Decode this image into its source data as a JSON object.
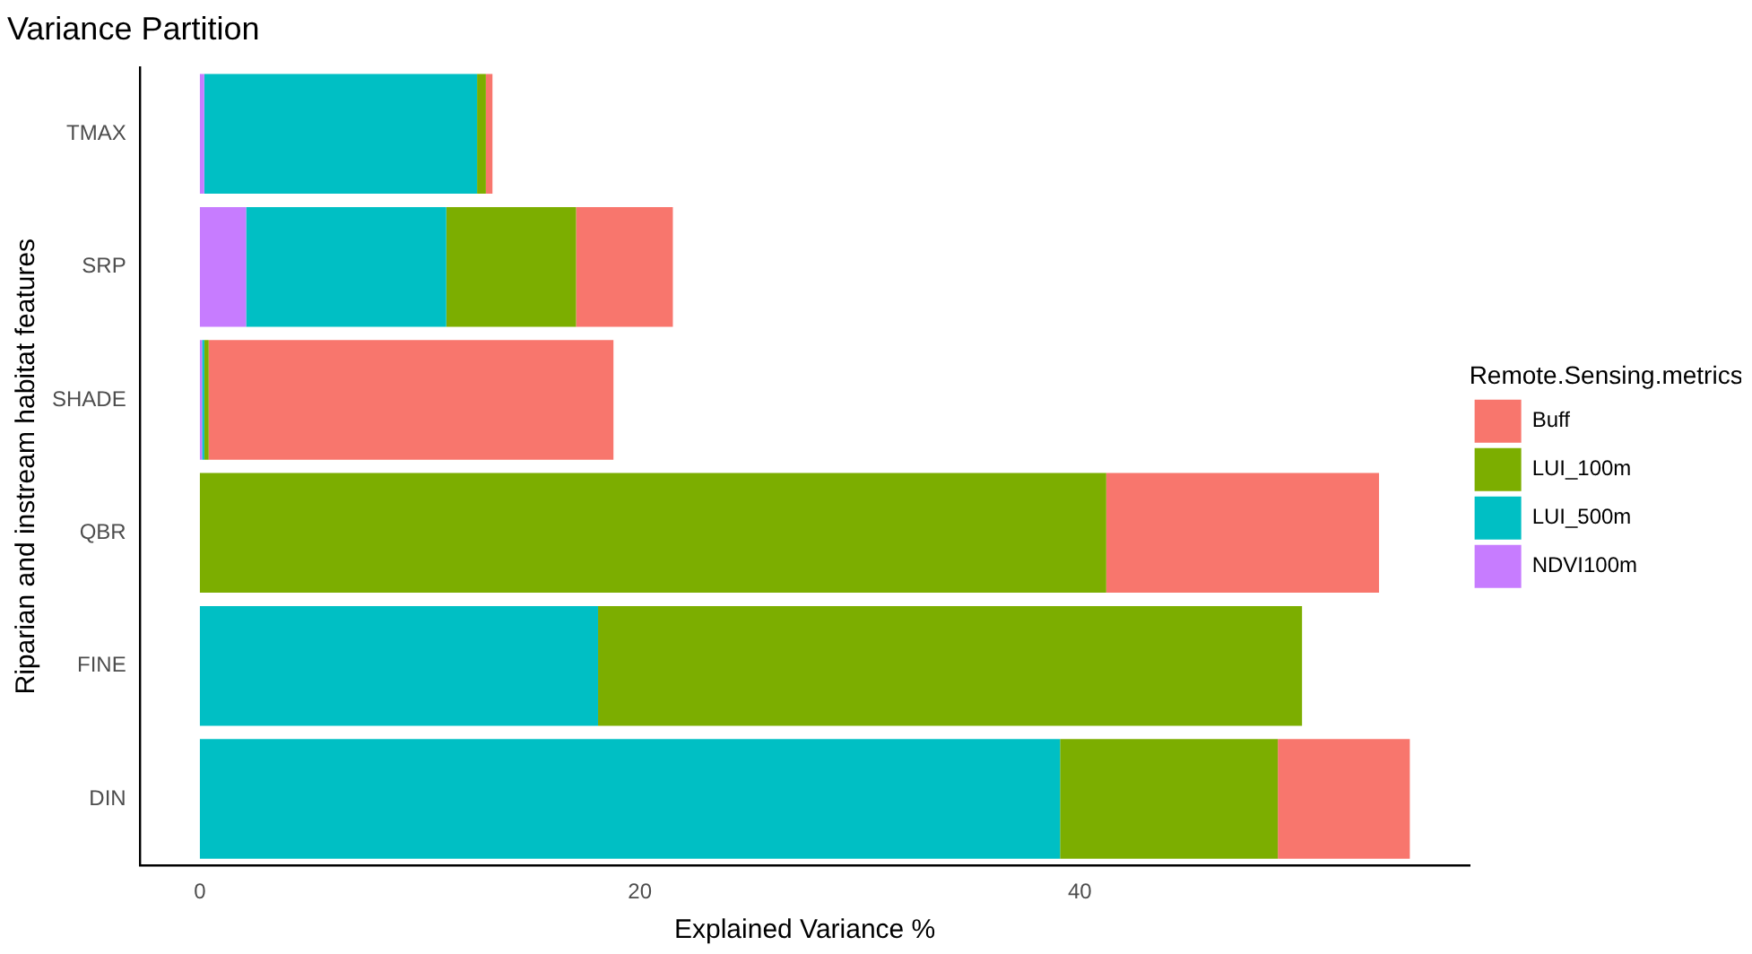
{
  "chart_data": {
    "type": "bar",
    "title": "Variance Partition",
    "xlabel": "Explained Variance %",
    "ylabel": "Riparian and instream habitat features",
    "legend_title": "Remote.Sensing.metrics",
    "orientation": "horizontal",
    "stacked": true,
    "categories": [
      "TMAX",
      "SRP",
      "SHADE",
      "QBR",
      "FINE",
      "DIN"
    ],
    "series": [
      {
        "name": "NDVI100m",
        "color": "#c77cff",
        "values": [
          0.2,
          2.1,
          0.1,
          0,
          0,
          0
        ]
      },
      {
        "name": "LUI_500m",
        "color": "#00bfc4",
        "values": [
          12.4,
          9.1,
          0.1,
          0,
          18.1,
          39.1
        ]
      },
      {
        "name": "LUI_100m",
        "color": "#7cae00",
        "values": [
          0.4,
          5.9,
          0.2,
          41.2,
          32.0,
          9.9
        ]
      },
      {
        "name": "Buff",
        "color": "#f8766d",
        "values": [
          0.3,
          4.4,
          18.4,
          12.4,
          0,
          6.0
        ]
      }
    ],
    "xlim": [
      -2.7,
      57.7
    ],
    "xticks": [
      0,
      20,
      40
    ],
    "grid": false,
    "legend": "right"
  }
}
